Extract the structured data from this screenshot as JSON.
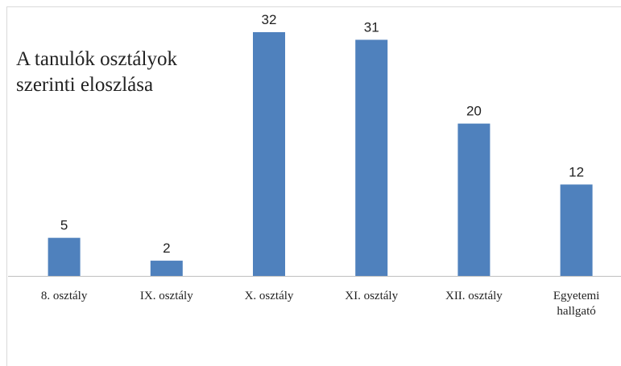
{
  "chart_data": {
    "type": "bar",
    "title": "A tanulók osztályok szerinti eloszlása",
    "categories": [
      "8. osztály",
      "IX. osztály",
      "X. osztály",
      "XI. osztály",
      "XII. osztály",
      "Egyetemi hallgató"
    ],
    "values": [
      5,
      2,
      32,
      31,
      20,
      12
    ],
    "color": "#4f81bd"
  }
}
